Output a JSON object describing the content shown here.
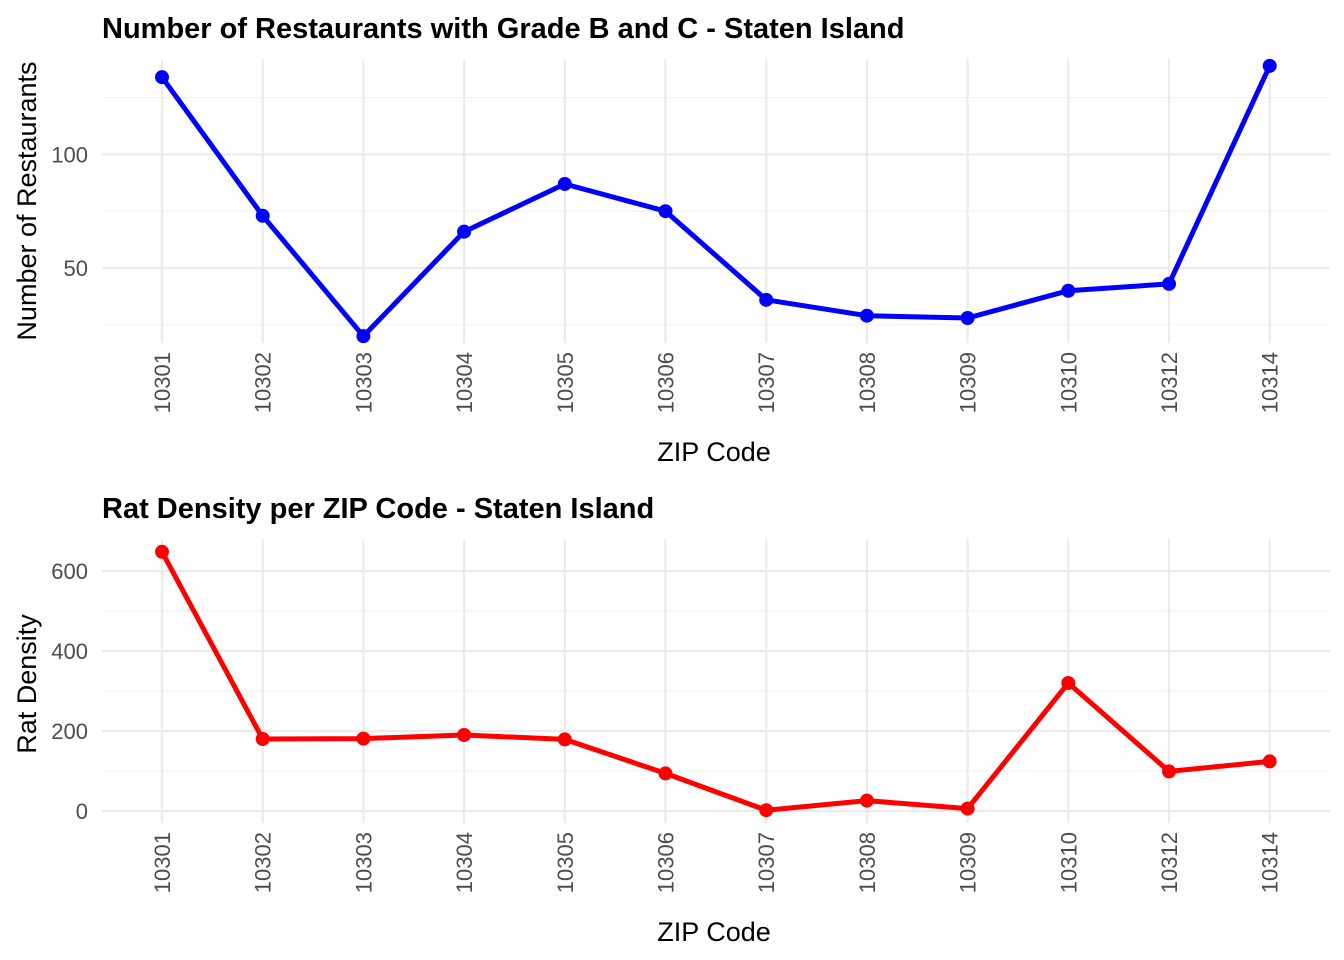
{
  "chart_data": [
    {
      "type": "line",
      "title": "Number of Restaurants with Grade B and C - Staten Island",
      "xlabel": "ZIP Code",
      "ylabel": "Number of Restaurants",
      "categories": [
        "10301",
        "10302",
        "10303",
        "10304",
        "10305",
        "10306",
        "10307",
        "10308",
        "10309",
        "10310",
        "10312",
        "10314"
      ],
      "values": [
        134,
        73,
        20,
        66,
        87,
        75,
        36,
        29,
        28,
        40,
        43,
        139
      ],
      "y_ticks": [
        50,
        100
      ],
      "y_minor_ticks": [
        25,
        75,
        125
      ],
      "ylim": [
        17,
        142
      ],
      "grid": true,
      "line_color": "#0000ff"
    },
    {
      "type": "line",
      "title": "Rat Density per ZIP Code - Staten Island",
      "xlabel": "ZIP Code",
      "ylabel": "Rat Density",
      "categories": [
        "10301",
        "10302",
        "10303",
        "10304",
        "10305",
        "10306",
        "10307",
        "10308",
        "10309",
        "10310",
        "10312",
        "10314"
      ],
      "values": [
        648,
        180,
        181,
        190,
        179,
        94,
        2,
        26,
        6,
        320,
        99,
        124
      ],
      "y_ticks": [
        0,
        200,
        400,
        600
      ],
      "y_minor_ticks": [
        100,
        300,
        500
      ],
      "ylim": [
        -30,
        680
      ],
      "grid": true,
      "line_color": "#ff0000"
    }
  ]
}
